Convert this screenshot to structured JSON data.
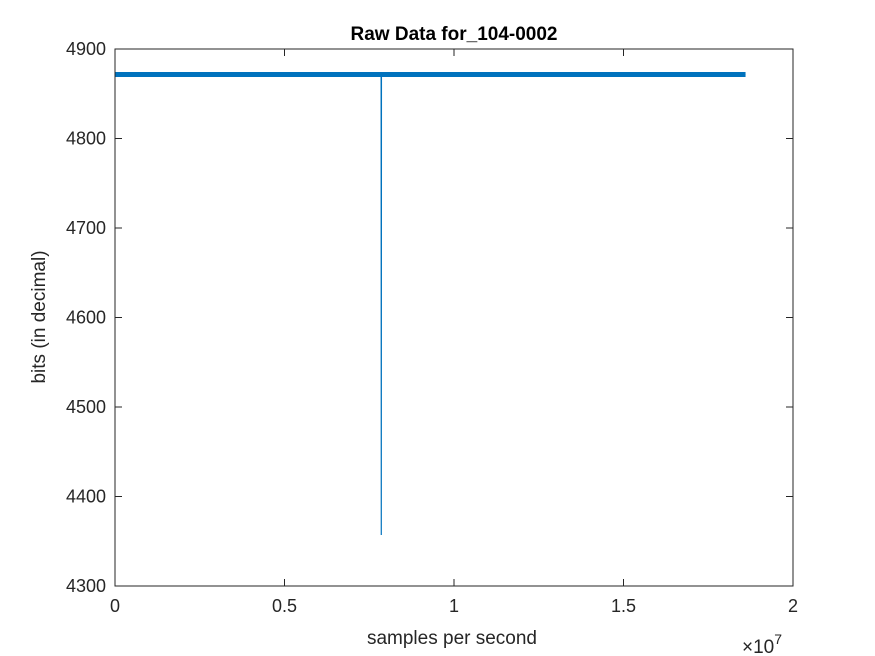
{
  "chart_data": {
    "type": "line",
    "title": "Raw Data for_104-0002",
    "xlabel": "samples per second",
    "ylabel": "bits (in decimal)",
    "x_exponent_label": "×10",
    "x_exponent_power": "7",
    "xlim": [
      0,
      2
    ],
    "ylim": [
      4300,
      4900
    ],
    "x_ticks": [
      0,
      0.5,
      1,
      1.5,
      2
    ],
    "x_tick_labels": [
      "0",
      "0.5",
      "1",
      "1.5",
      "2"
    ],
    "y_ticks": [
      4300,
      4400,
      4500,
      4600,
      4700,
      4800,
      4900
    ],
    "y_tick_labels": [
      "4300",
      "4400",
      "4500",
      "4600",
      "4700",
      "4800",
      "4900"
    ],
    "grid": false,
    "line_color": "#0072BD",
    "series": [
      {
        "x": [
          0,
          0.3,
          0.6,
          0.78,
          0.785,
          0.7855,
          0.786,
          0.79,
          1.0,
          1.3,
          1.6,
          1.86
        ],
        "values": [
          4871.5,
          4871.6,
          4871.5,
          4871.6,
          4871.5,
          4357,
          4871.5,
          4871.6,
          4871.5,
          4871.6,
          4871.5,
          4871.5
        ]
      }
    ]
  }
}
